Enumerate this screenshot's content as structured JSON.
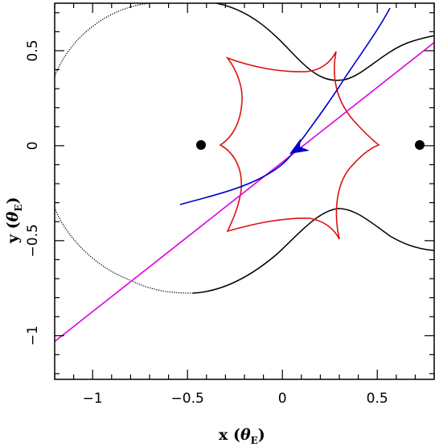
{
  "chart_data": {
    "type": "diagram",
    "xlabel": {
      "prefix": "x (",
      "symbol": "θ",
      "subscript": "E",
      "suffix": ")"
    },
    "ylabel": {
      "prefix": "y (",
      "symbol": "θ",
      "subscript": "E",
      "suffix": ")"
    },
    "xlim": [
      -1.2,
      0.8
    ],
    "ylim": [
      -1.23,
      0.75
    ],
    "xticks": [
      -1,
      -0.5,
      0,
      0.5
    ],
    "yticks": [
      -1,
      -0.5,
      0,
      0.5
    ],
    "xtick_labels": [
      "−1",
      "−0.5",
      "0",
      "0.5"
    ],
    "ytick_labels": [
      "−1",
      "−0.5",
      "0",
      "0.5"
    ],
    "lenses": [
      {
        "x": -0.42,
        "y": 0.0
      },
      {
        "x": 0.75,
        "y": 0.0
      }
    ],
    "colors": {
      "caustic": "#dd1111",
      "critical_curve": "#000000",
      "trajectory": "#0000cc",
      "source_line": "#dd00dd",
      "lens": "#000000"
    },
    "source_line": {
      "x": [
        -1.2,
        0.8
      ],
      "y": [
        -1.02,
        0.55
      ]
    },
    "caustic_cusps": [
      {
        "x": -0.28,
        "y": 0.46
      },
      {
        "x": 0.3,
        "y": 0.35
      },
      {
        "x": 0.29,
        "y": -0.35
      },
      {
        "x": -0.28,
        "y": -0.46
      },
      {
        "x": -0.32,
        "y": 0.0
      },
      {
        "x": 0.52,
        "y": 0.0
      },
      {
        "x": 0.3,
        "y": -0.34
      },
      {
        "x": 0.3,
        "y": 0.34
      }
    ],
    "trajectory": {
      "x": [
        -0.53,
        -0.35,
        -0.2,
        -0.05,
        0.08,
        0.2,
        0.32,
        0.42,
        0.5,
        0.56
      ],
      "y": [
        -0.32,
        -0.26,
        -0.2,
        -0.12,
        -0.02,
        0.12,
        0.3,
        0.46,
        0.6,
        0.71
      ],
      "arrow_at": {
        "x": 0.08,
        "y": -0.02
      }
    },
    "critical_curve_inner": {
      "x": [
        -0.75,
        -0.95,
        -1.12,
        -1.2,
        -1.12,
        -0.95,
        -0.75,
        -0.55,
        -0.35,
        -0.15,
        0.05,
        0.2,
        0.32,
        0.45,
        0.6,
        0.8
      ],
      "y": [
        0.75,
        0.68,
        0.52,
        0.3,
        0.0,
        -0.2,
        -0.4,
        -0.58,
        -0.72,
        -0.78,
        -0.76,
        -0.7,
        -0.58,
        -0.44,
        -0.38,
        -0.36
      ]
    },
    "critical_curve_upper": {
      "x": [
        -0.75,
        -0.55,
        -0.35,
        -0.15,
        0.05,
        0.2,
        0.32,
        0.45,
        0.6,
        0.8
      ],
      "y": [
        0.75,
        0.78,
        0.72,
        0.62,
        0.5,
        0.4,
        0.36,
        0.38,
        0.48,
        0.57
      ]
    }
  }
}
